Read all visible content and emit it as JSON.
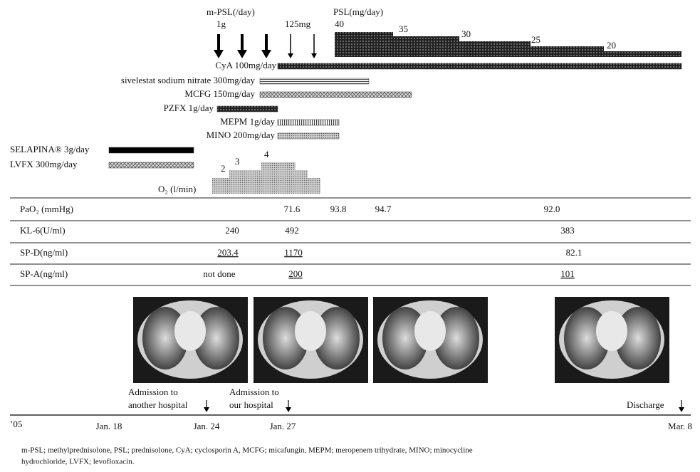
{
  "header": {
    "mpsl_label": "m-PSL(/day)",
    "mpsl_dose_high": "1g",
    "mpsl_dose_low": "125mg",
    "psl_label": "PSL(mg/day)",
    "psl_doses": [
      40,
      35,
      30,
      25,
      20
    ]
  },
  "treatments": [
    {
      "label": "CyA 100mg/day"
    },
    {
      "label": "sivelestat sodium nitrate  300mg/day"
    },
    {
      "label": "MCFG 150mg/day"
    },
    {
      "label": "PZFX 1g/day"
    },
    {
      "label": "MEPM 1g/day"
    },
    {
      "label": "MINO 200mg/day"
    },
    {
      "label": "SELAPINA® 3g/day"
    },
    {
      "label": "LVFX 300mg/day"
    }
  ],
  "oxygen": {
    "label": "O₂ (l/min)",
    "levels": [
      2,
      3,
      4
    ]
  },
  "table": {
    "rows": [
      {
        "label": "PaO₂ (mmHg)",
        "values": [
          "71.6",
          "93.8",
          "94.7",
          "92.0"
        ]
      },
      {
        "label": "KL-6(U/ml)",
        "values": [
          "240",
          "492",
          "383"
        ]
      },
      {
        "label": "SP-D(ng/ml)",
        "values": [
          "203.4",
          "1170",
          "82.1"
        ]
      },
      {
        "label": "SP-A(ng/ml)",
        "values": [
          "not done",
          "200",
          "101"
        ]
      }
    ]
  },
  "timeline": {
    "year": "’05",
    "dates": [
      "Jan. 18",
      "Jan. 24",
      "Jan. 27",
      "Mar. 8"
    ],
    "events": [
      {
        "lines": [
          "Admission to",
          "another hospital"
        ]
      },
      {
        "lines": [
          "Admission to",
          "our hospital"
        ]
      },
      {
        "lines": [
          "Discharge"
        ]
      }
    ]
  },
  "footnote": {
    "lines": [
      "m-PSL; methylprednisolone, PSL; prednisolone, CyA; cyclosporin A, MCFG; micafungin, MEPM; meropenem trihydrate, MINO; minocycline",
      "hydrochloride, LVFX; levofloxacin."
    ]
  }
}
